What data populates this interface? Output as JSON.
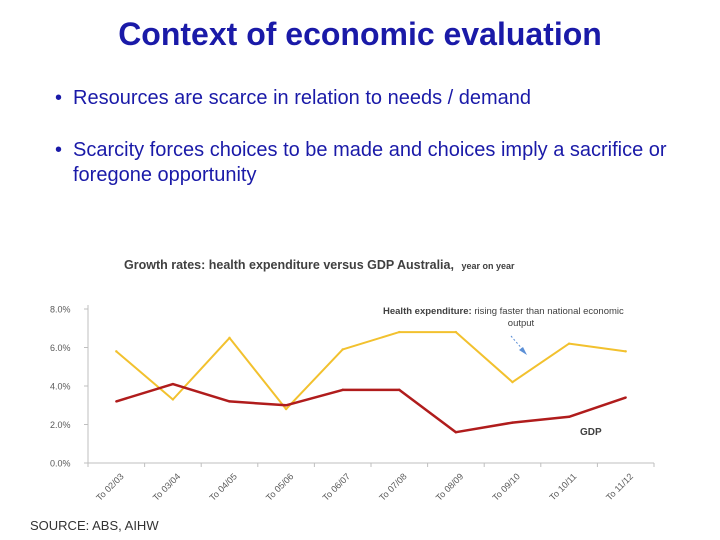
{
  "slide": {
    "title": "Context of economic evaluation",
    "bullets": [
      "Resources are scarce in relation to needs / demand",
      "Scarcity forces choices to be made and choices imply a sacrifice or foregone opportunity"
    ],
    "bullet_glyph": "•",
    "source": "SOURCE:  ABS, AIHW"
  },
  "colors": {
    "title": "#1a1aa8",
    "health_line": "#f2c12e",
    "gdp_line": "#b01c1c",
    "arrow": "#5b8fd6"
  },
  "chart_data": {
    "type": "line",
    "title": "Growth rates: health expenditure versus GDP Australia,",
    "title_suffix": "year on year",
    "categories": [
      "To 02/03",
      "To 03/04",
      "To 04/05",
      "To 05/06",
      "To 06/07",
      "To 07/08",
      "To 08/09",
      "To 09/10",
      "To 10/11",
      "To 11/12"
    ],
    "series": [
      {
        "key": "health",
        "values": [
          5.8,
          3.3,
          6.5,
          2.8,
          5.9,
          6.8,
          6.8,
          4.2,
          6.2,
          5.8
        ]
      },
      {
        "key": "gdp",
        "values": [
          3.2,
          4.1,
          3.2,
          3.0,
          3.8,
          3.8,
          1.6,
          2.1,
          2.4,
          3.4
        ]
      }
    ],
    "ylim": [
      0,
      8
    ],
    "yticks": [
      "0.0%",
      "2.0%",
      "4.0%",
      "6.0%",
      "8.0%"
    ],
    "grid": false,
    "annotations": [
      {
        "key": "health",
        "bold": "Health expenditure:",
        "rest": " rising faster than national economic",
        "line2": "output"
      },
      {
        "key": "gdp",
        "text": "GDP"
      }
    ]
  }
}
